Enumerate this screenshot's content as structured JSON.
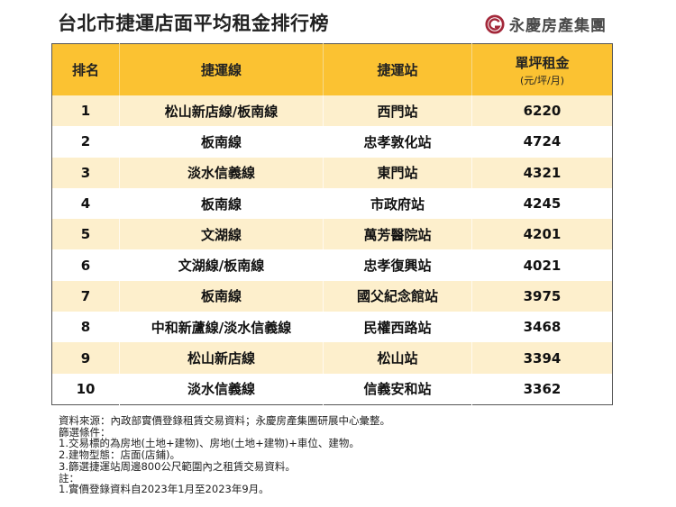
{
  "title": "台北市捷運店面平均租金排行榜",
  "brand": {
    "name": "永慶房產集團",
    "logo_icon": "yungching-logo-icon",
    "logo_color": "#a3283a"
  },
  "colors": {
    "header_bg": "#fbc232",
    "row_alt_bg": "#fdefcc",
    "row_bg": "#ffffff"
  },
  "table": {
    "headers": [
      {
        "label": "排名",
        "sub": ""
      },
      {
        "label": "捷運線",
        "sub": ""
      },
      {
        "label": "捷運站",
        "sub": ""
      },
      {
        "label": "單坪租金",
        "sub": "(元/坪/月)"
      }
    ],
    "rows": [
      {
        "rank": "1",
        "line": "松山新店線/板南線",
        "station": "西門站",
        "rent": "6220"
      },
      {
        "rank": "2",
        "line": "板南線",
        "station": "忠孝敦化站",
        "rent": "4724"
      },
      {
        "rank": "3",
        "line": "淡水信義線",
        "station": "東門站",
        "rent": "4321"
      },
      {
        "rank": "4",
        "line": "板南線",
        "station": "市政府站",
        "rent": "4245"
      },
      {
        "rank": "5",
        "line": "文湖線",
        "station": "萬芳醫院站",
        "rent": "4201"
      },
      {
        "rank": "6",
        "line": "文湖線/板南線",
        "station": "忠孝復興站",
        "rent": "4021"
      },
      {
        "rank": "7",
        "line": "板南線",
        "station": "國父紀念館站",
        "rent": "3975"
      },
      {
        "rank": "8",
        "line": "中和新蘆線/淡水信義線",
        "station": "民權西路站",
        "rent": "3468"
      },
      {
        "rank": "9",
        "line": "松山新店線",
        "station": "松山站",
        "rent": "3394"
      },
      {
        "rank": "10",
        "line": "淡水信義線",
        "station": "信義安和站",
        "rent": "3362"
      }
    ]
  },
  "notes": [
    "資料來源：內政部實價登錄租賃交易資料；永慶房產集團研展中心彙整。",
    "篩選條件：",
    "1.交易標的為房地(土地+建物)、房地(土地+建物)+車位、建物。",
    "2.建物型態：店面(店鋪)。",
    "3.篩選捷運站周邊800公尺範圍內之租賃交易資料。",
    "註：",
    "1.實價登錄資料自2023年1月至2023年9月。"
  ]
}
